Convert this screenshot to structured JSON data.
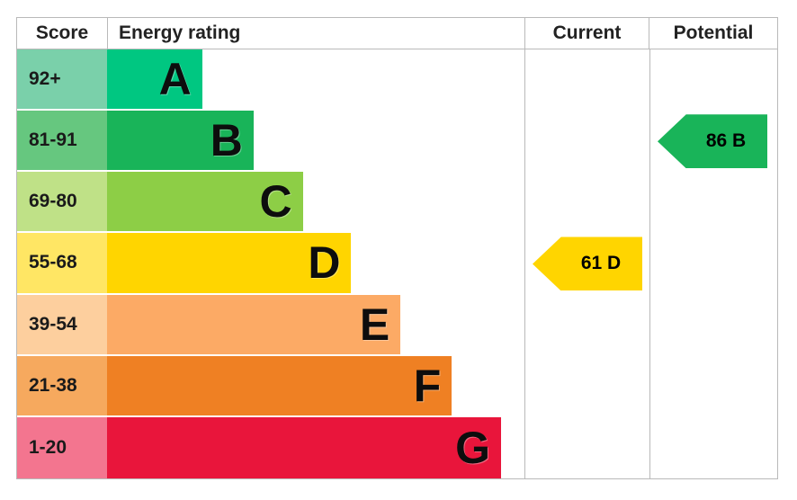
{
  "header": {
    "score": "Score",
    "energy_rating": "Energy rating",
    "current": "Current",
    "potential": "Potential"
  },
  "bands": [
    {
      "score_label": "92+",
      "letter": "A",
      "band_color": "#00c781",
      "score_color": "#7ad0aa",
      "bar_width_pct": 22.8
    },
    {
      "score_label": "81-91",
      "letter": "B",
      "band_color": "#19b459",
      "score_color": "#66c77f",
      "bar_width_pct": 35.1
    },
    {
      "score_label": "69-80",
      "letter": "C",
      "band_color": "#8dce46",
      "score_color": "#bfe187",
      "bar_width_pct": 46.9
    },
    {
      "score_label": "55-68",
      "letter": "D",
      "band_color": "#ffd500",
      "score_color": "#ffe664",
      "bar_width_pct": 58.5
    },
    {
      "score_label": "39-54",
      "letter": "E",
      "band_color": "#fcaa65",
      "score_color": "#fdcf9e",
      "bar_width_pct": 70.3
    },
    {
      "score_label": "21-38",
      "letter": "F",
      "band_color": "#ef8023",
      "score_color": "#f6a95e",
      "bar_width_pct": 82.6
    },
    {
      "score_label": "1-20",
      "letter": "G",
      "band_color": "#e9153b",
      "score_color": "#f3758f",
      "bar_width_pct": 94.4
    }
  ],
  "markers": {
    "current": {
      "label": "61 D",
      "value": 61,
      "band": "D",
      "row_index": 3,
      "color": "#ffd500"
    },
    "potential": {
      "label": "86 B",
      "value": 86,
      "band": "B",
      "row_index": 1,
      "color": "#19b459"
    }
  },
  "chart_data": {
    "type": "bar",
    "orientation": "horizontal",
    "columns": [
      "Score",
      "Energy rating",
      "Current",
      "Potential"
    ],
    "categories": [
      "A",
      "B",
      "C",
      "D",
      "E",
      "F",
      "G"
    ],
    "score_ranges": [
      "92+",
      "81-91",
      "69-80",
      "55-68",
      "39-54",
      "21-38",
      "1-20"
    ],
    "bar_lengths_pct_of_track": [
      22.8,
      35.1,
      46.9,
      58.5,
      70.3,
      82.6,
      94.4
    ],
    "band_colors": [
      "#00c781",
      "#19b459",
      "#8dce46",
      "#ffd500",
      "#fcaa65",
      "#ef8023",
      "#e9153b"
    ],
    "score_cell_colors": [
      "#7ad0aa",
      "#66c77f",
      "#bfe187",
      "#ffe664",
      "#fdcf9e",
      "#f6a95e",
      "#f3758f"
    ],
    "current": {
      "value": 61,
      "band": "D"
    },
    "potential": {
      "value": 86,
      "band": "B"
    },
    "grid": false,
    "legend": "none"
  }
}
